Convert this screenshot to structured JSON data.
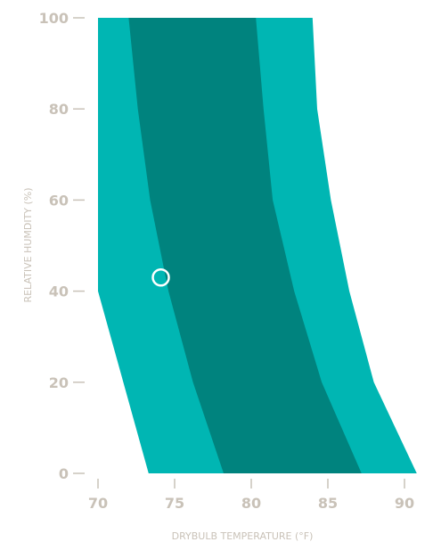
{
  "chart_data": {
    "type": "area",
    "title": "",
    "xlabel": "DRYBULB TEMPERATURE (°F)",
    "ylabel": "RELATIVE HUMDITY (%)",
    "xlim": [
      70,
      90
    ],
    "ylim": [
      0,
      100
    ],
    "x_ticks": [
      "70",
      "75",
      "80",
      "85",
      "90"
    ],
    "y_ticks": [
      "0",
      "20",
      "40",
      "60",
      "80",
      "100"
    ],
    "grid": false,
    "colors": {
      "outer_zone": "#00b6b3",
      "inner_zone": "#00837e",
      "tick": "#c9c2b8",
      "marker": "#ffffff"
    },
    "series": [
      {
        "polygon": [
          {
            "x": 70.0,
            "y": 100
          },
          {
            "x": 84.0,
            "y": 100
          },
          {
            "x": 84.3,
            "y": 80
          },
          {
            "x": 85.2,
            "y": 60
          },
          {
            "x": 86.4,
            "y": 40
          },
          {
            "x": 88.0,
            "y": 20
          },
          {
            "x": 90.8,
            "y": 0
          },
          {
            "x": 73.3,
            "y": 0
          },
          {
            "x": 70.0,
            "y": 40
          }
        ]
      },
      {
        "polygon": [
          {
            "x": 72.0,
            "y": 100
          },
          {
            "x": 80.3,
            "y": 100
          },
          {
            "x": 80.8,
            "y": 80
          },
          {
            "x": 81.4,
            "y": 60
          },
          {
            "x": 82.8,
            "y": 40
          },
          {
            "x": 84.6,
            "y": 20
          },
          {
            "x": 87.2,
            "y": 0
          },
          {
            "x": 78.2,
            "y": 0
          },
          {
            "x": 76.2,
            "y": 20
          },
          {
            "x": 74.6,
            "y": 40
          },
          {
            "x": 73.4,
            "y": 60
          },
          {
            "x": 72.6,
            "y": 80
          }
        ]
      }
    ],
    "point": {
      "x": 74.1,
      "y": 43
    }
  }
}
